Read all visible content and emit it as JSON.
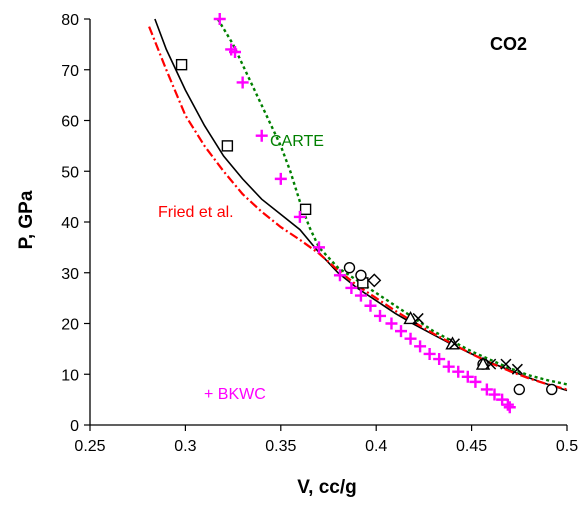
{
  "chart_data": {
    "type": "scatter",
    "title": "CO2",
    "xlabel": "V, cc/g",
    "ylabel": "P, GPa",
    "xlim": [
      0.25,
      0.5
    ],
    "ylim": [
      0,
      80
    ],
    "x_ticks": [
      "0.25",
      "0.3",
      "0.35",
      "0.4",
      "0.45",
      "0.5"
    ],
    "y_ticks": [
      "0",
      "10",
      "20",
      "30",
      "40",
      "50",
      "60",
      "70",
      "80"
    ],
    "grid": false,
    "colors": {
      "black": "#000000",
      "red": "#ff0000",
      "green": "#008000",
      "magenta": "#ff00ff"
    },
    "curves": [
      {
        "style": "solid",
        "color": "#000000",
        "x": [
          0.284,
          0.29,
          0.3,
          0.31,
          0.32,
          0.33,
          0.34,
          0.35,
          0.36,
          0.37,
          0.38,
          0.39,
          0.4,
          0.41,
          0.42,
          0.43,
          0.44,
          0.45,
          0.46,
          0.47,
          0.48,
          0.49,
          0.5
        ],
        "y": [
          80,
          74,
          66,
          59,
          53,
          48.5,
          44.5,
          41.5,
          38.5,
          34,
          30,
          27,
          24.5,
          22,
          19.8,
          17.8,
          15.8,
          14,
          12.3,
          10.8,
          9.3,
          8,
          6.8
        ]
      },
      {
        "name": "Fried et al.",
        "style": "dashdot",
        "color": "#ff0000",
        "x": [
          0.281,
          0.29,
          0.3,
          0.31,
          0.32,
          0.33,
          0.34,
          0.35,
          0.36,
          0.37,
          0.38,
          0.39,
          0.4,
          0.41,
          0.42,
          0.43,
          0.44,
          0.45,
          0.46,
          0.47,
          0.48,
          0.49,
          0.5
        ],
        "y": [
          78.5,
          70,
          61,
          55,
          50,
          45.5,
          42,
          39,
          36.5,
          33.8,
          30.5,
          27.5,
          25,
          22.5,
          20.2,
          18,
          16,
          14,
          12.2,
          10.6,
          9.2,
          8,
          7
        ]
      },
      {
        "name": "CARTE",
        "style": "dotted",
        "color": "#008000",
        "x": [
          0.317,
          0.325,
          0.33,
          0.34,
          0.35,
          0.355,
          0.36,
          0.365,
          0.37,
          0.38,
          0.39,
          0.4,
          0.41,
          0.42,
          0.43,
          0.44,
          0.45,
          0.46,
          0.47,
          0.48,
          0.49,
          0.5
        ],
        "y": [
          80,
          75,
          71,
          63,
          55,
          50,
          44,
          39,
          35,
          31,
          28.5,
          26,
          23.5,
          21,
          18.5,
          16.5,
          14.5,
          12.8,
          11.2,
          9.8,
          8.8,
          8
        ]
      }
    ],
    "series": [
      {
        "marker": "square",
        "color": "#000000",
        "x": [
          0.298,
          0.322,
          0.363,
          0.393
        ],
        "y": [
          71,
          55,
          42.5,
          28
        ]
      },
      {
        "marker": "circle",
        "color": "#000000",
        "x": [
          0.386,
          0.392,
          0.456,
          0.475,
          0.492
        ],
        "y": [
          31,
          29.5,
          12,
          7,
          7
        ]
      },
      {
        "marker": "diamond",
        "color": "#000000",
        "x": [
          0.399
        ],
        "y": [
          28.5
        ]
      },
      {
        "marker": "triangle",
        "color": "#000000",
        "x": [
          0.418,
          0.44,
          0.456
        ],
        "y": [
          21,
          16,
          12
        ]
      },
      {
        "marker": "x",
        "color": "#000000",
        "x": [
          0.422,
          0.441,
          0.46,
          0.468,
          0.474
        ],
        "y": [
          21,
          16,
          12,
          12,
          11
        ]
      },
      {
        "name": "BKWC",
        "marker": "plus",
        "color": "#ff00ff",
        "x": [
          0.318,
          0.324,
          0.326,
          0.33,
          0.34,
          0.35,
          0.36,
          0.37,
          0.381,
          0.387,
          0.392,
          0.397,
          0.402,
          0.408,
          0.413,
          0.418,
          0.423,
          0.428,
          0.433,
          0.438,
          0.443,
          0.448,
          0.452,
          0.458,
          0.462,
          0.466,
          0.469,
          0.47
        ],
        "y": [
          80,
          74,
          73.5,
          67.5,
          57,
          48.5,
          41,
          35,
          29.5,
          27,
          25.5,
          23.5,
          21.5,
          20,
          18.5,
          17,
          15.5,
          14,
          13,
          11.5,
          10.5,
          9.5,
          8.5,
          7,
          6,
          5,
          4,
          3.5
        ]
      }
    ],
    "annotations": {
      "carte": "CARTE",
      "fried": "Fried et al.",
      "bkwc": "+ BKWC"
    }
  }
}
